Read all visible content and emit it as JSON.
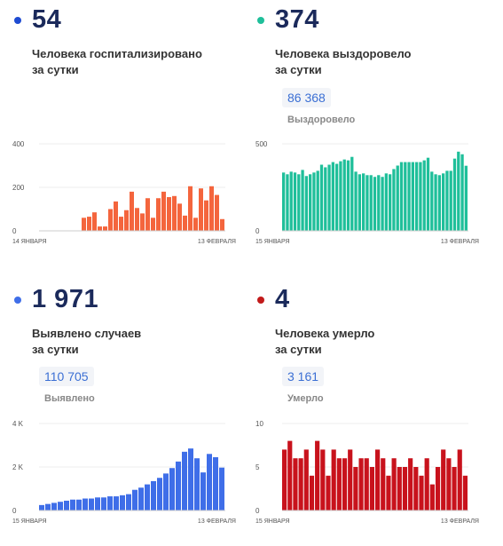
{
  "panels": [
    {
      "value": "54",
      "desc1": "Человека госпитализировано",
      "desc2": "за сутки",
      "color": "#1e4bd2",
      "total_value": "",
      "total_label": ""
    },
    {
      "value": "374",
      "desc1": "Человека выздоровело",
      "desc2": "за сутки",
      "color": "#1fbf9a",
      "total_value": "86 368",
      "total_label": "Выздоровело"
    },
    {
      "value": "1 971",
      "desc1": "Выявлено случаев",
      "desc2": "за сутки",
      "color": "#3f6ee8",
      "total_value": "110 705",
      "total_label": "Выявлено"
    },
    {
      "value": "4",
      "desc1": "Человека умерло",
      "desc2": "за сутки",
      "color": "#c21a1a",
      "total_value": "3 161",
      "total_label": "Умерло"
    }
  ],
  "chart_data": [
    {
      "type": "bar",
      "color": "#f4653d",
      "x_start": "14 ЯНВАРЯ",
      "x_end": "13 ФЕВРАЛЯ",
      "ylim": [
        0,
        400
      ],
      "yticks": [
        "400",
        "200",
        "0"
      ],
      "values": [
        0,
        0,
        0,
        0,
        0,
        0,
        0,
        0,
        60,
        65,
        85,
        20,
        20,
        100,
        135,
        65,
        95,
        180,
        105,
        80,
        150,
        60,
        150,
        180,
        155,
        160,
        125,
        70,
        205,
        60,
        195,
        140,
        205,
        165,
        54
      ]
    },
    {
      "type": "bar",
      "color": "#1fbf9a",
      "x_start": "15 ЯНВАРЯ",
      "x_end": "13 ФЕВРАЛЯ",
      "ylim": [
        0,
        500
      ],
      "yticks": [
        "500",
        "0"
      ],
      "values": [
        335,
        325,
        340,
        335,
        325,
        350,
        315,
        325,
        335,
        345,
        380,
        365,
        380,
        395,
        385,
        400,
        410,
        405,
        425,
        340,
        325,
        330,
        320,
        320,
        310,
        320,
        310,
        330,
        325,
        355,
        375,
        395,
        395,
        395,
        395,
        395,
        395,
        405,
        420,
        340,
        325,
        320,
        330,
        345,
        345,
        415,
        455,
        440,
        374
      ]
    },
    {
      "type": "bar",
      "color": "#3f6ee8",
      "x_start": "15 ЯНВАРЯ",
      "x_end": "13 ФЕВРАЛЯ",
      "ylim": [
        0,
        4000
      ],
      "yticks": [
        "4 K",
        "2 K",
        "0"
      ],
      "values": [
        250,
        300,
        350,
        400,
        450,
        500,
        500,
        550,
        550,
        600,
        600,
        650,
        650,
        700,
        750,
        950,
        1050,
        1200,
        1350,
        1500,
        1700,
        1950,
        2250,
        2700,
        2850,
        2400,
        1750,
        2600,
        2450,
        1971
      ]
    },
    {
      "type": "bar",
      "color": "#c8121c",
      "x_start": "15 ЯНВАРЯ",
      "x_end": "13 ФЕВРАЛЯ",
      "ylim": [
        0,
        10
      ],
      "yticks": [
        "10",
        "5",
        "0"
      ],
      "values": [
        7,
        8,
        6,
        6,
        7,
        4,
        8,
        7,
        4,
        7,
        6,
        6,
        7,
        5,
        6,
        6,
        5,
        7,
        6,
        4,
        6,
        5,
        5,
        6,
        5,
        4,
        6,
        3,
        5,
        7,
        6,
        5,
        7,
        4
      ]
    }
  ]
}
